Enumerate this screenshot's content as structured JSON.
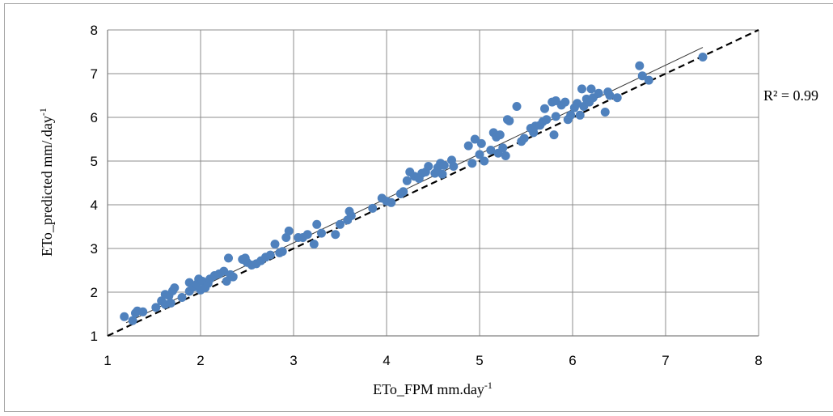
{
  "chart_data": {
    "type": "scatter",
    "xlabel": "ETo_FPM mm.day",
    "xlabel_sup": "-1",
    "ylabel": "ETo_predicted mm/.day",
    "ylabel_sup": "-1",
    "xlim": [
      1,
      8
    ],
    "ylim": [
      1,
      8
    ],
    "x_ticks": [
      "1",
      "2",
      "3",
      "4",
      "5",
      "6",
      "7",
      "8"
    ],
    "y_ticks": [
      "1",
      "2",
      "3",
      "4",
      "5",
      "6",
      "7",
      "8"
    ],
    "grid": true,
    "annotation": "R² = 0.99",
    "point_color": "#4f81bd",
    "reference_line": {
      "style": "dashed",
      "from": [
        1,
        1
      ],
      "to": [
        8,
        8
      ]
    },
    "trend_line": {
      "style": "solid",
      "from": [
        1.2,
        1.3
      ],
      "to": [
        7.4,
        7.6
      ]
    },
    "points": [
      [
        1.18,
        1.44
      ],
      [
        1.27,
        1.35
      ],
      [
        1.3,
        1.52
      ],
      [
        1.32,
        1.57
      ],
      [
        1.38,
        1.55
      ],
      [
        1.52,
        1.65
      ],
      [
        1.58,
        1.8
      ],
      [
        1.62,
        1.72
      ],
      [
        1.62,
        1.95
      ],
      [
        1.66,
        1.92
      ],
      [
        1.68,
        1.75
      ],
      [
        1.7,
        2.03
      ],
      [
        1.72,
        2.1
      ],
      [
        1.8,
        1.88
      ],
      [
        1.88,
        2.02
      ],
      [
        1.88,
        2.22
      ],
      [
        1.93,
        2.12
      ],
      [
        1.96,
        2.18
      ],
      [
        1.98,
        2.3
      ],
      [
        2.0,
        2.05
      ],
      [
        2.02,
        2.25
      ],
      [
        2.05,
        2.1
      ],
      [
        2.08,
        2.2
      ],
      [
        2.1,
        2.3
      ],
      [
        2.15,
        2.38
      ],
      [
        2.2,
        2.42
      ],
      [
        2.25,
        2.48
      ],
      [
        2.28,
        2.25
      ],
      [
        2.3,
        2.78
      ],
      [
        2.32,
        2.4
      ],
      [
        2.35,
        2.35
      ],
      [
        2.45,
        2.75
      ],
      [
        2.48,
        2.78
      ],
      [
        2.5,
        2.68
      ],
      [
        2.55,
        2.62
      ],
      [
        2.6,
        2.65
      ],
      [
        2.65,
        2.72
      ],
      [
        2.7,
        2.8
      ],
      [
        2.75,
        2.85
      ],
      [
        2.8,
        3.1
      ],
      [
        2.85,
        2.9
      ],
      [
        2.88,
        2.93
      ],
      [
        2.92,
        3.25
      ],
      [
        2.95,
        3.4
      ],
      [
        3.05,
        3.25
      ],
      [
        3.1,
        3.25
      ],
      [
        3.15,
        3.32
      ],
      [
        3.22,
        3.1
      ],
      [
        3.25,
        3.55
      ],
      [
        3.3,
        3.35
      ],
      [
        3.45,
        3.32
      ],
      [
        3.5,
        3.55
      ],
      [
        3.58,
        3.65
      ],
      [
        3.6,
        3.85
      ],
      [
        3.62,
        3.75
      ],
      [
        3.85,
        3.92
      ],
      [
        3.95,
        4.15
      ],
      [
        4.0,
        4.08
      ],
      [
        4.05,
        4.05
      ],
      [
        4.15,
        4.25
      ],
      [
        4.18,
        4.3
      ],
      [
        4.22,
        4.55
      ],
      [
        4.25,
        4.75
      ],
      [
        4.3,
        4.65
      ],
      [
        4.35,
        4.6
      ],
      [
        4.38,
        4.72
      ],
      [
        4.42,
        4.75
      ],
      [
        4.45,
        4.88
      ],
      [
        4.52,
        4.72
      ],
      [
        4.55,
        4.85
      ],
      [
        4.58,
        4.95
      ],
      [
        4.6,
        4.7
      ],
      [
        4.62,
        4.9
      ],
      [
        4.7,
        5.02
      ],
      [
        4.72,
        4.88
      ],
      [
        4.88,
        5.35
      ],
      [
        4.92,
        4.95
      ],
      [
        4.95,
        5.5
      ],
      [
        5.0,
        5.15
      ],
      [
        5.02,
        5.4
      ],
      [
        5.05,
        5.0
      ],
      [
        5.12,
        5.25
      ],
      [
        5.15,
        5.65
      ],
      [
        5.18,
        5.55
      ],
      [
        5.2,
        5.18
      ],
      [
        5.22,
        5.6
      ],
      [
        5.25,
        5.3
      ],
      [
        5.28,
        5.12
      ],
      [
        5.3,
        5.95
      ],
      [
        5.32,
        5.92
      ],
      [
        5.4,
        6.25
      ],
      [
        5.45,
        5.45
      ],
      [
        5.48,
        5.52
      ],
      [
        5.55,
        5.75
      ],
      [
        5.58,
        5.65
      ],
      [
        5.6,
        5.8
      ],
      [
        5.65,
        5.82
      ],
      [
        5.68,
        5.9
      ],
      [
        5.7,
        6.2
      ],
      [
        5.72,
        5.95
      ],
      [
        5.78,
        6.35
      ],
      [
        5.8,
        5.6
      ],
      [
        5.82,
        6.02
      ],
      [
        5.82,
        6.38
      ],
      [
        5.88,
        6.28
      ],
      [
        5.92,
        6.35
      ],
      [
        5.95,
        5.95
      ],
      [
        5.98,
        6.05
      ],
      [
        6.02,
        6.22
      ],
      [
        6.05,
        6.32
      ],
      [
        6.08,
        6.05
      ],
      [
        6.1,
        6.65
      ],
      [
        6.12,
        6.25
      ],
      [
        6.15,
        6.42
      ],
      [
        6.18,
        6.35
      ],
      [
        6.2,
        6.65
      ],
      [
        6.22,
        6.45
      ],
      [
        6.28,
        6.55
      ],
      [
        6.35,
        6.12
      ],
      [
        6.38,
        6.58
      ],
      [
        6.4,
        6.5
      ],
      [
        6.48,
        6.45
      ],
      [
        6.72,
        7.18
      ],
      [
        6.75,
        6.95
      ],
      [
        6.82,
        6.85
      ],
      [
        7.4,
        7.38
      ]
    ]
  }
}
